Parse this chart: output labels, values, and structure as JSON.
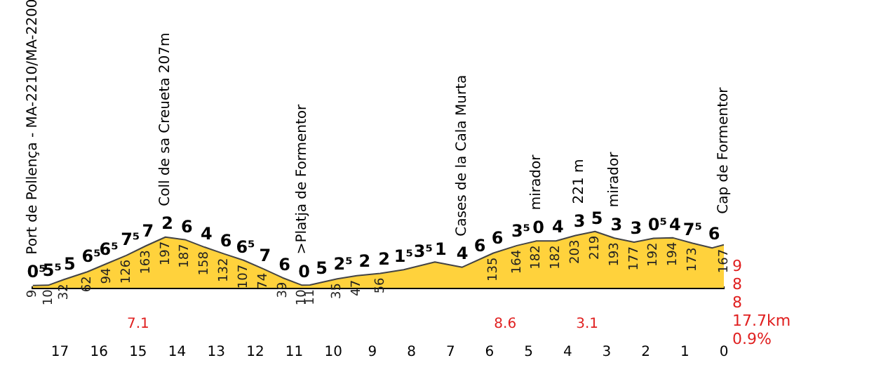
{
  "chart_data": {
    "type": "area",
    "color": "#ffd23c",
    "marker": "none",
    "tick_labels": "x",
    "x": [
      17.7,
      17.3,
      16.9,
      16.3,
      15.8,
      15.3,
      14.8,
      14.3,
      13.8,
      13.3,
      12.8,
      12.3,
      11.8,
      11.3,
      10.8,
      10.6,
      9.9,
      9.4,
      8.8,
      8.2,
      7.4,
      6.7,
      5.9,
      5.3,
      4.8,
      4.3,
      3.8,
      3.3,
      2.8,
      2.3,
      1.8,
      1.3,
      0.8,
      0.3,
      0
    ],
    "values": [
      9,
      10,
      32,
      62,
      94,
      126,
      163,
      197,
      187,
      158,
      132,
      107,
      74,
      39,
      10,
      11,
      35,
      47,
      56,
      70,
      100,
      80,
      135,
      164,
      182,
      182,
      203,
      219,
      193,
      177,
      192,
      194,
      173,
      155,
      167
    ],
    "value_labels": [
      "9",
      "10",
      "32",
      "62",
      "94",
      "126",
      "163",
      "197",
      "187",
      "158",
      "132",
      "107",
      "74",
      "39",
      "10",
      "11",
      "35",
      "47",
      "56",
      null,
      null,
      null,
      "135",
      "164",
      "182",
      "182",
      "203",
      "219",
      "193",
      "177",
      "192",
      "194",
      "173",
      null,
      "167"
    ],
    "xlim": [
      17.7,
      0
    ],
    "xticks": [
      17,
      16,
      15,
      14,
      13,
      12,
      11,
      10,
      9,
      8,
      7,
      6,
      5,
      4,
      3,
      2,
      1,
      0
    ],
    "annotations": [
      {
        "text": "0⁵",
        "x": 17.6,
        "y": 9
      },
      {
        "text": "5⁵",
        "x": 17.2,
        "y": 15
      },
      {
        "text": "5",
        "x": 16.75,
        "y": 40
      },
      {
        "text": "6⁵",
        "x": 16.2,
        "y": 68
      },
      {
        "text": "6⁵",
        "x": 15.75,
        "y": 97
      },
      {
        "text": "7⁵",
        "x": 15.2,
        "y": 133
      },
      {
        "text": "7",
        "x": 14.75,
        "y": 166
      },
      {
        "text": "2",
        "x": 14.25,
        "y": 196
      },
      {
        "text": "6",
        "x": 13.75,
        "y": 184
      },
      {
        "text": "4",
        "x": 13.25,
        "y": 156
      },
      {
        "text": "6",
        "x": 12.75,
        "y": 130
      },
      {
        "text": "6⁵",
        "x": 12.25,
        "y": 104
      },
      {
        "text": "7",
        "x": 11.75,
        "y": 71
      },
      {
        "text": "6",
        "x": 11.25,
        "y": 35
      },
      {
        "text": "0",
        "x": 10.75,
        "y": 10
      },
      {
        "text": "5",
        "x": 10.3,
        "y": 22
      },
      {
        "text": "2⁵",
        "x": 9.75,
        "y": 39
      },
      {
        "text": "2",
        "x": 9.2,
        "y": 50
      },
      {
        "text": "2",
        "x": 8.7,
        "y": 58
      },
      {
        "text": "1⁵",
        "x": 8.2,
        "y": 70
      },
      {
        "text": "3⁵",
        "x": 7.7,
        "y": 88
      },
      {
        "text": "1",
        "x": 7.25,
        "y": 97
      },
      {
        "text": "4",
        "x": 6.7,
        "y": 80
      },
      {
        "text": "6",
        "x": 6.25,
        "y": 110
      },
      {
        "text": "6",
        "x": 5.8,
        "y": 140
      },
      {
        "text": "3⁵",
        "x": 5.2,
        "y": 167
      },
      {
        "text": "0",
        "x": 4.75,
        "y": 182
      },
      {
        "text": "4",
        "x": 4.25,
        "y": 184
      },
      {
        "text": "3",
        "x": 3.7,
        "y": 206
      },
      {
        "text": "5",
        "x": 3.25,
        "y": 216
      },
      {
        "text": "3",
        "x": 2.75,
        "y": 191
      },
      {
        "text": "3",
        "x": 2.25,
        "y": 178
      },
      {
        "text": "0⁵",
        "x": 1.7,
        "y": 192
      },
      {
        "text": "4",
        "x": 1.25,
        "y": 192
      },
      {
        "text": "7⁵",
        "x": 0.8,
        "y": 173
      },
      {
        "text": "6",
        "x": 0.25,
        "y": 156
      },
      {
        "text": "Port de Pollença - MA-2210/MA-2200",
        "x": 17.7,
        "y": 9
      },
      {
        "text": "Coll de sa Creueta 207m",
        "x": 14.3,
        "y": 197
      },
      {
        "text": ">Platja de Formentor",
        "x": 10.8,
        "y": 10
      },
      {
        "text": "Cases de la Cala Murta",
        "x": 6.7,
        "y": 80
      },
      {
        "text": "mirador",
        "x": 4.8,
        "y": 182
      },
      {
        "text": "221 m",
        "x": 3.7,
        "y": 206
      },
      {
        "text": "mirador",
        "x": 2.8,
        "y": 193
      },
      {
        "text": "Cap de Formentor",
        "x": 0,
        "y": 167
      },
      {
        "text": "7.1",
        "x": 15.0,
        "y": 0
      },
      {
        "text": "8.6",
        "x": 5.6,
        "y": 0
      },
      {
        "text": "3.1",
        "x": 3.5,
        "y": 0
      },
      "9",
      "8",
      "8",
      "17.7km",
      "0.9%"
    ]
  }
}
